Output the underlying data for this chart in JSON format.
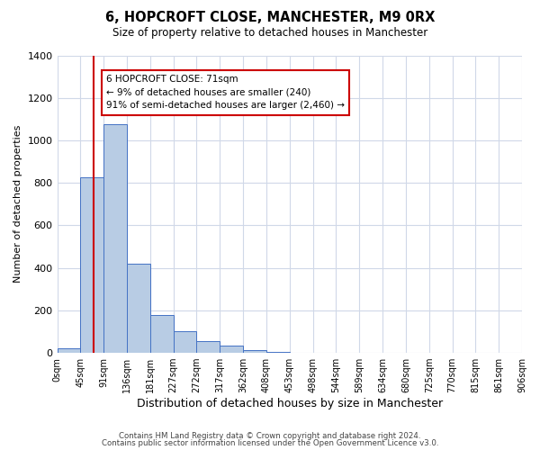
{
  "title": "6, HOPCROFT CLOSE, MANCHESTER, M9 0RX",
  "subtitle": "Size of property relative to detached houses in Manchester",
  "xlabel": "Distribution of detached houses by size in Manchester",
  "ylabel": "Number of detached properties",
  "bin_labels": [
    "0sqm",
    "45sqm",
    "91sqm",
    "136sqm",
    "181sqm",
    "227sqm",
    "272sqm",
    "317sqm",
    "362sqm",
    "408sqm",
    "453sqm",
    "498sqm",
    "544sqm",
    "589sqm",
    "634sqm",
    "680sqm",
    "725sqm",
    "770sqm",
    "815sqm",
    "861sqm",
    "906sqm"
  ],
  "num_bins": 20,
  "bar_heights": [
    20,
    825,
    1075,
    420,
    180,
    100,
    55,
    35,
    15,
    5,
    0,
    0,
    0,
    0,
    0,
    0,
    0,
    0,
    0,
    0
  ],
  "bar_color": "#b8cce4",
  "bar_edge_color": "#4472c4",
  "ylim": [
    0,
    1400
  ],
  "yticks": [
    0,
    200,
    400,
    600,
    800,
    1000,
    1200,
    1400
  ],
  "vline_bin": 1.58,
  "vline_color": "#cc0000",
  "annotation_title": "6 HOPCROFT CLOSE: 71sqm",
  "annotation_line1": "← 9% of detached houses are smaller (240)",
  "annotation_line2": "91% of semi-detached houses are larger (2,460) →",
  "annotation_box_color": "#cc0000",
  "footer_line1": "Contains HM Land Registry data © Crown copyright and database right 2024.",
  "footer_line2": "Contains public sector information licensed under the Open Government Licence v3.0.",
  "background_color": "#ffffff",
  "grid_color": "#d0d8e8"
}
